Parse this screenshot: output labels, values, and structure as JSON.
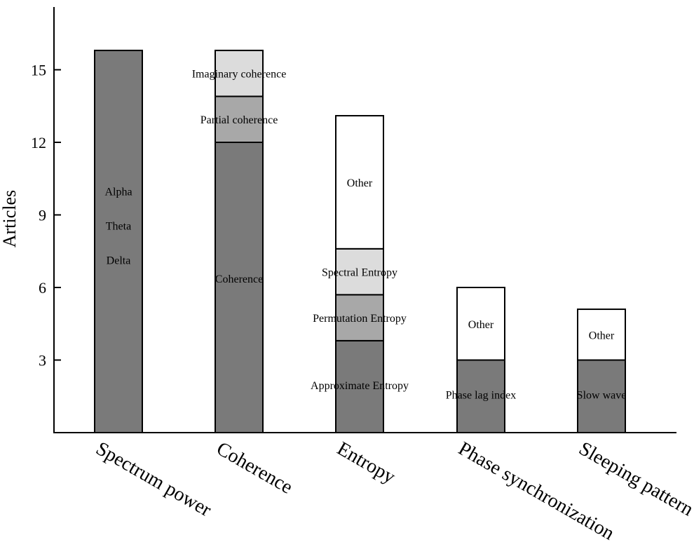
{
  "chart_data": {
    "type": "bar",
    "stacked": true,
    "title": "",
    "xlabel": "",
    "ylabel": "Articles",
    "ylim": [
      0,
      17.5
    ],
    "yticks": [
      3,
      6,
      9,
      12,
      15
    ],
    "grid": false,
    "colors": {
      "dark": "#7a7a7a",
      "mid": "#a8a8a8",
      "light": "#dcdcdc",
      "white": "#ffffff"
    },
    "categories": [
      "Spectrum power",
      "Coherence",
      "Entropy",
      "Phase synchronization",
      "Sleeping pattern"
    ],
    "stacks": [
      {
        "category": "Spectrum power",
        "segments": [
          {
            "value": 15.8,
            "color": "dark",
            "labels": [
              "Alpha",
              "Theta",
              "Delta"
            ]
          }
        ]
      },
      {
        "category": "Coherence",
        "segments": [
          {
            "value": 12.0,
            "color": "dark",
            "labels": [
              "Coherence"
            ]
          },
          {
            "value": 1.9,
            "color": "mid",
            "labels": [
              "Partial coherence"
            ]
          },
          {
            "value": 1.9,
            "color": "light",
            "labels": [
              "Imaginary coherence"
            ]
          }
        ]
      },
      {
        "category": "Entropy",
        "segments": [
          {
            "value": 3.8,
            "color": "dark",
            "labels": [
              "Approximate Entropy"
            ]
          },
          {
            "value": 1.9,
            "color": "mid",
            "labels": [
              "Permutation Entropy"
            ]
          },
          {
            "value": 1.9,
            "color": "light",
            "labels": [
              "Spectral Entropy"
            ]
          },
          {
            "value": 5.5,
            "color": "white",
            "labels": [
              "Other"
            ]
          }
        ]
      },
      {
        "category": "Phase synchronization",
        "segments": [
          {
            "value": 3.0,
            "color": "dark",
            "labels": [
              "Phase lag index"
            ]
          },
          {
            "value": 3.0,
            "color": "white",
            "labels": [
              "Other"
            ]
          }
        ]
      },
      {
        "category": "Sleeping pattern",
        "segments": [
          {
            "value": 3.0,
            "color": "dark",
            "labels": [
              "Slow wave"
            ]
          },
          {
            "value": 2.1,
            "color": "white",
            "labels": [
              "Other"
            ]
          }
        ]
      }
    ]
  }
}
